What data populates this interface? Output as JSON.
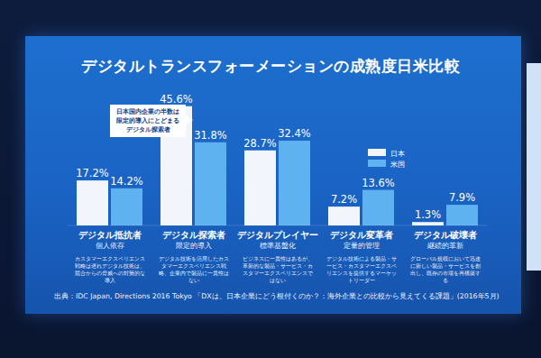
{
  "chart_data": {
    "type": "bar",
    "title": "デジタルトランスフォーメーションの成熟度日米比較",
    "annotation": "日本国内企業の半数は限定的導入にとどまるデジタル探索者",
    "source": "出典：IDC Japan, Directions 2016 Tokyo 「DXは、日本企業にどう根付くのか？：海外企業との比較から見えてくる課題」(2016年5月)",
    "categories": [
      "デジタル抵抗者",
      "デジタル探索者",
      "デジタルプレイヤー",
      "デジタル変革者",
      "デジタル破壊者"
    ],
    "category_subtitles": [
      "個人依存",
      "限定的導入",
      "標準基盤化",
      "定量的管理",
      "継続的革新"
    ],
    "category_descriptions": [
      "カスタマーエクスペリエンス戦略は遅れデジタル技術は、競合からの脅威への対策的な導入",
      "デジタル技術を活用したカスタマーエクスペリエンス戦略、企業内で製品に一貫性はない",
      "ビジネスに一貫性はあるが、革新的な製品・サービス・カスタマーエクスペリエンスではない",
      "デジタル技術による製品・サービス・カスタマーエクスペリエンスを提供するマーケットリーダー",
      "グローバル規模において迅速に新しい製品・サービスを創出し、既存の市場を再構築する"
    ],
    "series": [
      {
        "name": "日本",
        "color": "#f2f6fc",
        "values": [
          17.2,
          45.6,
          28.7,
          7.2,
          1.3
        ],
        "value_labels": [
          "17.2%",
          "45.6%",
          "28.7%",
          "7.2%",
          "1.3%"
        ]
      },
      {
        "name": "米国",
        "color": "#5eb2ef",
        "values": [
          14.2,
          31.8,
          32.4,
          13.6,
          7.9
        ],
        "value_labels": [
          "14.2%",
          "31.8%",
          "32.4%",
          "13.6%",
          "7.9%"
        ]
      }
    ],
    "ylim": [
      0,
      50
    ],
    "data_labels": true,
    "legend": "top-right",
    "grid": false,
    "tick_labels": false
  }
}
